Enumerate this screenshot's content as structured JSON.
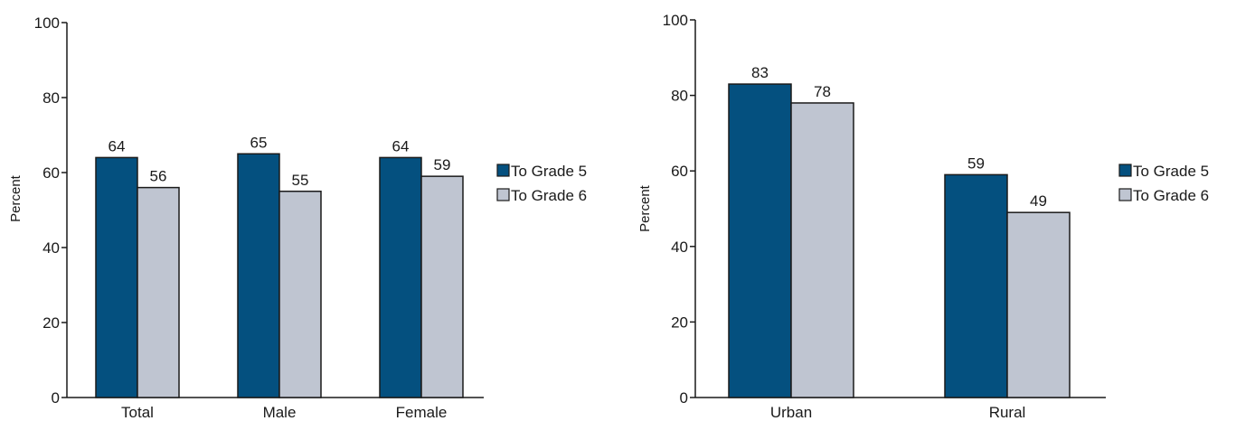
{
  "colors": {
    "grade5": "#04507f",
    "grade6": "#bfc5d1"
  },
  "chart_data": [
    {
      "type": "bar",
      "categories": [
        "Total",
        "Male",
        "Female"
      ],
      "series": [
        {
          "name": "To Grade 5",
          "values": [
            64,
            65,
            64
          ]
        },
        {
          "name": "To Grade 6",
          "values": [
            56,
            55,
            59
          ]
        }
      ],
      "ylabel": "Percent",
      "ylim": [
        0,
        100
      ],
      "yticks": [
        "0",
        "20",
        "40",
        "60",
        "80",
        "100"
      ],
      "grid": false,
      "legend_position": "right"
    },
    {
      "type": "bar",
      "categories": [
        "Urban",
        "Rural"
      ],
      "series": [
        {
          "name": "To Grade 5",
          "values": [
            83,
            59
          ]
        },
        {
          "name": "To Grade 6",
          "values": [
            78,
            49
          ]
        }
      ],
      "ylabel": "Percent",
      "ylim": [
        0,
        100
      ],
      "yticks": [
        "0",
        "20",
        "40",
        "60",
        "80",
        "100"
      ],
      "grid": false,
      "legend_position": "right"
    }
  ]
}
